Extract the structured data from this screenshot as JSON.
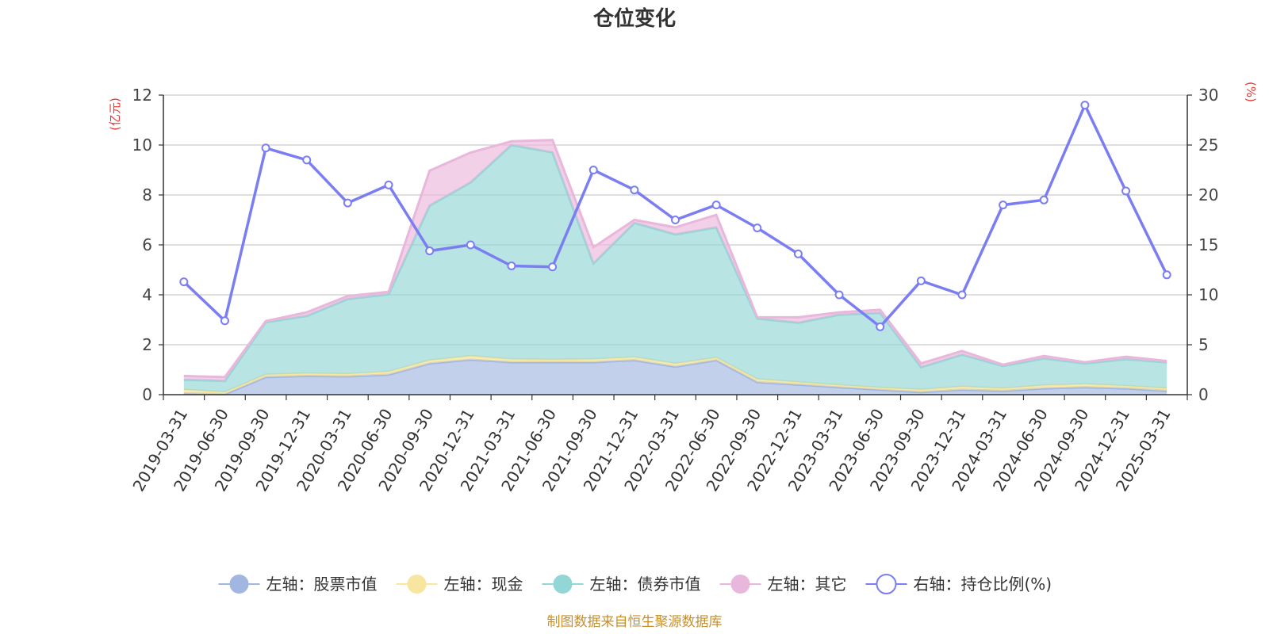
{
  "chart_data": {
    "type": "area",
    "title": "仓位变化",
    "left_unit": "(亿元)",
    "right_unit": "(%)",
    "source": "制图数据来自恒生聚源数据库",
    "categories": [
      "2019-03-31",
      "2019-06-30",
      "2019-09-30",
      "2019-12-31",
      "2020-03-31",
      "2020-06-30",
      "2020-09-30",
      "2020-12-31",
      "2021-03-31",
      "2021-06-30",
      "2021-09-30",
      "2021-12-31",
      "2022-03-31",
      "2022-06-30",
      "2022-09-30",
      "2022-12-31",
      "2023-03-31",
      "2023-06-30",
      "2023-09-30",
      "2023-12-31",
      "2024-03-31",
      "2024-06-30",
      "2024-09-30",
      "2024-12-31",
      "2025-03-31"
    ],
    "left_ylim": [
      0,
      12
    ],
    "left_ticks": [
      0,
      2,
      4,
      6,
      8,
      10,
      12
    ],
    "right_ylim": [
      0,
      30
    ],
    "right_ticks": [
      0,
      5,
      10,
      15,
      20,
      25,
      30
    ],
    "grid": true,
    "legend_position": "bottom",
    "series": [
      {
        "name": "左轴：股票市值",
        "axis": "left",
        "kind": "stacked-area",
        "color": "#a1b7e2",
        "values": [
          0.05,
          0.02,
          0.7,
          0.75,
          0.73,
          0.8,
          1.25,
          1.4,
          1.3,
          1.3,
          1.3,
          1.38,
          1.12,
          1.38,
          0.5,
          0.4,
          0.3,
          0.2,
          0.1,
          0.2,
          0.15,
          0.25,
          0.3,
          0.25,
          0.15
        ]
      },
      {
        "name": "左轴：现金",
        "axis": "left",
        "kind": "stacked-area",
        "color": "#f7e5a0",
        "values": [
          0.15,
          0.08,
          0.1,
          0.1,
          0.1,
          0.12,
          0.12,
          0.15,
          0.12,
          0.1,
          0.12,
          0.12,
          0.12,
          0.1,
          0.12,
          0.1,
          0.08,
          0.08,
          0.1,
          0.12,
          0.1,
          0.12,
          0.12,
          0.1,
          0.1
        ]
      },
      {
        "name": "左轴：债券市值",
        "axis": "left",
        "kind": "stacked-area",
        "color": "#93d6d6",
        "values": [
          0.4,
          0.45,
          2.1,
          2.3,
          3.0,
          3.1,
          6.2,
          6.95,
          8.58,
          8.3,
          3.83,
          5.38,
          5.18,
          5.22,
          2.43,
          2.38,
          2.82,
          3.0,
          0.9,
          1.28,
          0.9,
          1.08,
          0.83,
          1.07,
          1.05
        ]
      },
      {
        "name": "左轴：其它",
        "axis": "left",
        "kind": "stacked-area",
        "color": "#e9b7dc",
        "values": [
          0.15,
          0.15,
          0.05,
          0.15,
          0.12,
          0.1,
          1.4,
          1.2,
          0.15,
          0.5,
          0.65,
          0.12,
          0.28,
          0.5,
          0.05,
          0.22,
          0.1,
          0.12,
          0.15,
          0.15,
          0.05,
          0.1,
          0.05,
          0.1,
          0.05
        ]
      },
      {
        "name": "右轴：持仓比例(%)",
        "axis": "right",
        "kind": "line",
        "color": "#7b7ef2",
        "values": [
          11.3,
          7.4,
          24.7,
          23.5,
          19.2,
          21.0,
          14.4,
          15.0,
          12.9,
          12.8,
          22.5,
          20.5,
          17.5,
          19.0,
          16.7,
          14.1,
          10.0,
          6.8,
          11.4,
          10.0,
          19.0,
          19.5,
          29.0,
          20.4,
          12.0
        ]
      }
    ]
  },
  "colors": {
    "unit_red": "#e53935",
    "source_gold": "#c7902e",
    "axis": "#333333",
    "grid": "#cccccc"
  }
}
